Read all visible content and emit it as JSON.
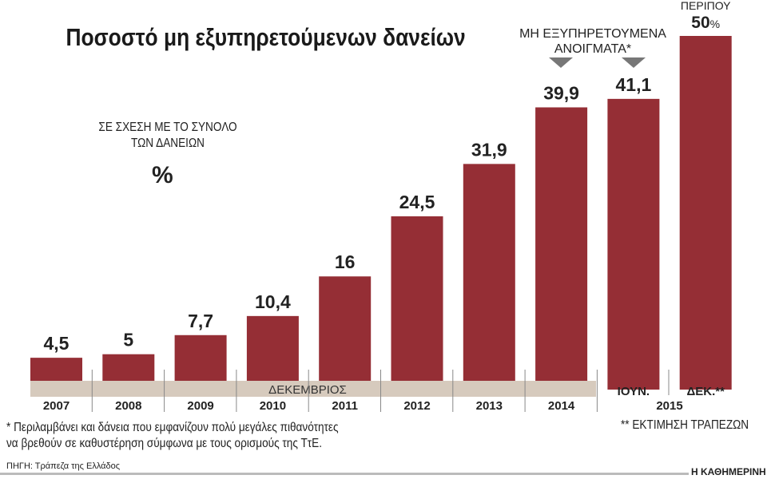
{
  "chart_data": {
    "type": "bar",
    "title": "Ποσοστό μη εξυπηρετούμενων δανείων",
    "subtitle": "ΣΕ ΣΧΕΣΗ ΜΕ ΤΟ ΣΥΝΟΛΟ ΤΩΝ ΔΑΝΕΙΩΝ",
    "unit": "%",
    "categories": [
      "2007",
      "2008",
      "2009",
      "2010",
      "2011",
      "2012",
      "2013",
      "2014",
      "ΙΟΥΝ.",
      "ΔΕΚ.**"
    ],
    "values": [
      4.5,
      5,
      7.7,
      10.4,
      16,
      24.5,
      31.9,
      39.9,
      41.1,
      50
    ],
    "value_labels": [
      "4,5",
      "5",
      "7,7",
      "10,4",
      "16",
      "24,5",
      "31,9",
      "39,9",
      "41,1",
      "50"
    ],
    "last_prefix": "ΠΕΡΙΠΟΥ",
    "last_suffix": "%",
    "band_label": "ΔΕΚΕΜΒΡΙΟΣ",
    "group_label_2015": "2015",
    "annotation": "ΜΗ ΕΞΥΠΗΡΕΤΟΥΜΕΝΑ ΑΝΟΙΓΜΑΤΑ*",
    "colors": {
      "bar": "#952e35",
      "band": "#d6cabd",
      "arrow": "#777777"
    }
  },
  "footnotes": {
    "star1": "* Περιλαμβάνει και δάνεια  που εμφανίζουν πολύ μεγάλες πιθανότητες",
    "star1b": "να βρεθούν σε καθυστέρηση σύμφωνα με τους ορισμούς της ΤτΕ.",
    "star2": "** ΕΚΤΙΜΗΣΗ ΤΡΑΠΕΖΩΝ",
    "source": "ΠΗΓΗ: Τράπεζα της Ελλάδος",
    "brand": "Η ΚΑΘΗΜΕΡΙΝΗ"
  }
}
